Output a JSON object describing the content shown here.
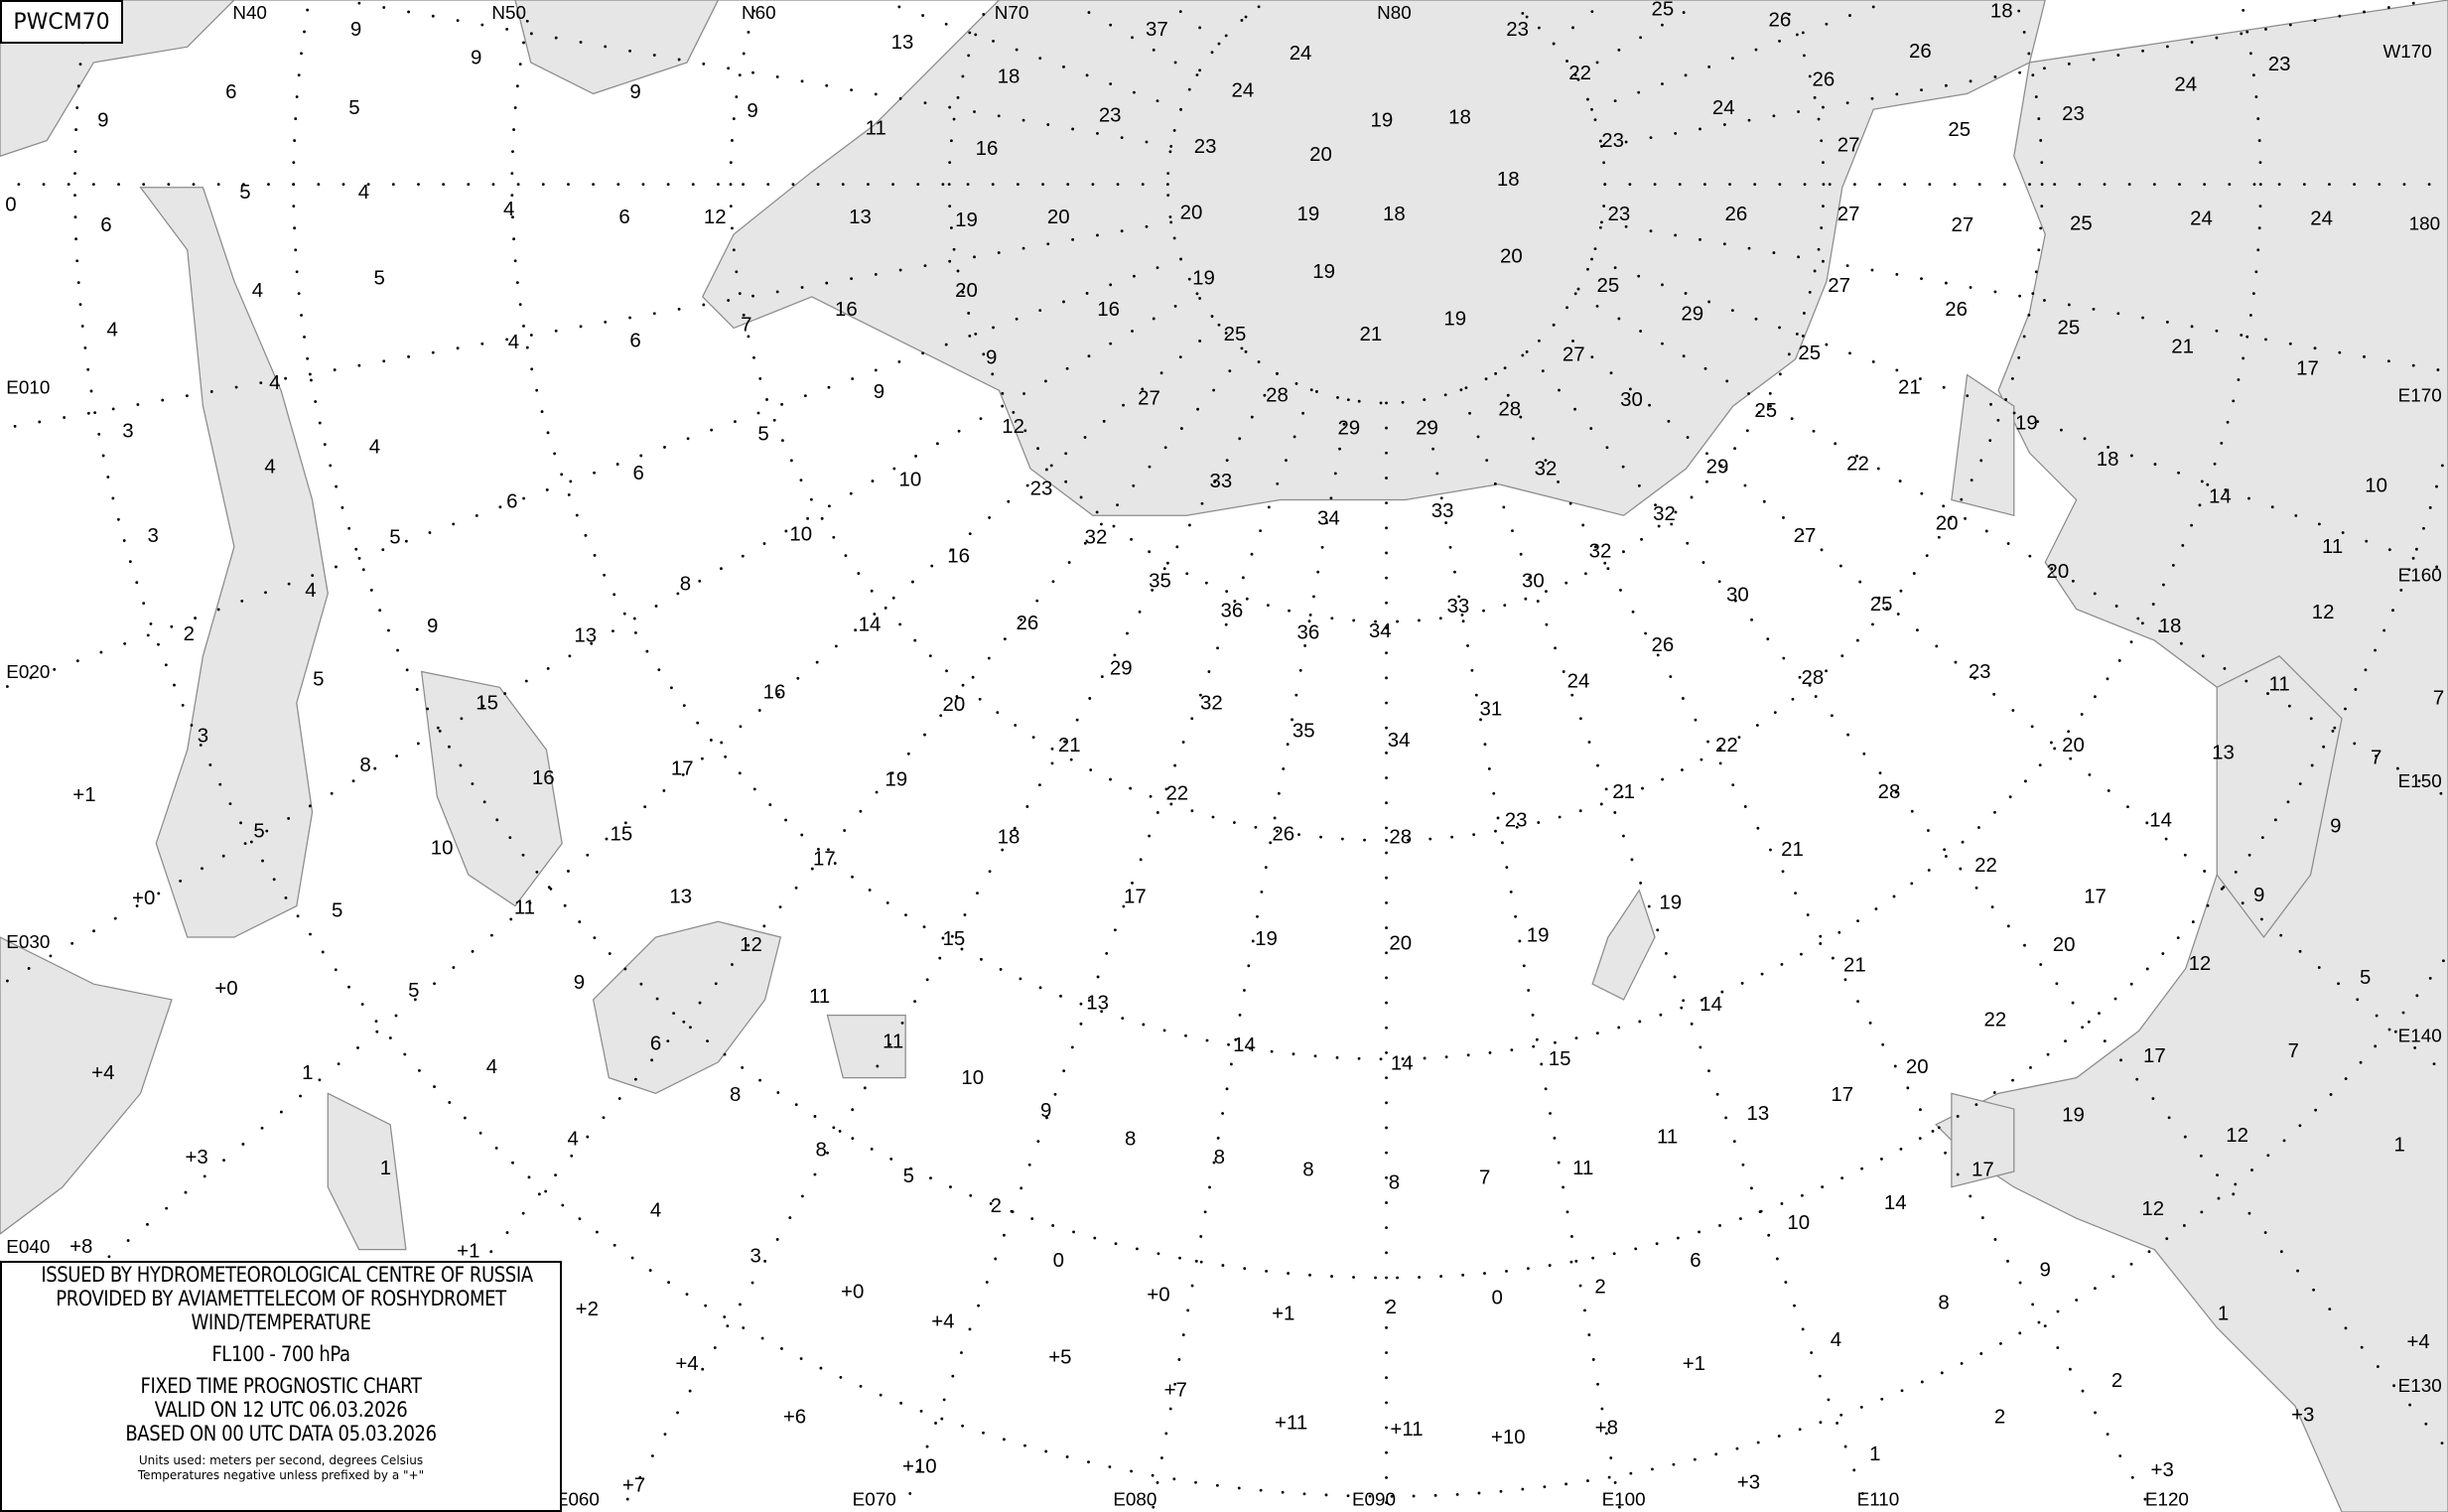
{
  "chart_id": "PWCM70",
  "legend": {
    "line1": "ISSUED BY HYDROMETEOROLOGICAL CENTRE OF RUSSIA",
    "line2": "PROVIDED BY AVIAMETTELECOM OF ROSHYDROMET",
    "line3": "WIND/TEMPERATURE",
    "level": "FL100 - 700 hPa",
    "type": "FIXED TIME PROGNOSTIC CHART",
    "valid": "VALID ON 12 UTC 06.03.2026",
    "based": "BASED ON 00 UTC DATA 05.03.2026",
    "units": "Units used: meters per second, degrees Celsius",
    "note": "Temperatures negative unless prefixed by a \"+\""
  },
  "grid_labels": [
    "N40",
    "N50",
    "N60",
    "N70",
    "N80",
    "W170",
    "180",
    "E170",
    "E160",
    "E150",
    "E140",
    "E130",
    "E120",
    "E110",
    "E100",
    "E090",
    "E080",
    "E070",
    "E060",
    "E040",
    "E030",
    "E020",
    "E010"
  ],
  "temperatures": [
    "9",
    "9",
    "9",
    "9",
    "13",
    "37",
    "23",
    "25",
    "26",
    "18",
    "23",
    "6",
    "5",
    "9",
    "11",
    "18",
    "23",
    "24",
    "24",
    "19",
    "18",
    "22",
    "24",
    "26",
    "26",
    "25",
    "23",
    "24",
    "5",
    "4",
    "16",
    "23",
    "20",
    "18",
    "23",
    "27",
    "0",
    "6",
    "4",
    "6",
    "12",
    "13",
    "19",
    "20",
    "20",
    "19",
    "18",
    "23",
    "26",
    "27",
    "27",
    "25",
    "24",
    "24",
    "4",
    "5",
    "20",
    "19",
    "19",
    "20",
    "25",
    "27",
    "26",
    "4",
    "4",
    "6",
    "7",
    "16",
    "16",
    "25",
    "21",
    "19",
    "27",
    "29",
    "25",
    "21",
    "17",
    "9",
    "9",
    "5",
    "4",
    "4",
    "3",
    "27",
    "28",
    "29",
    "29",
    "28",
    "30",
    "25",
    "25",
    "21",
    "19",
    "18",
    "10",
    "12",
    "4",
    "6",
    "10",
    "23",
    "33",
    "29",
    "22",
    "32",
    "3",
    "6",
    "10",
    "16",
    "32",
    "34",
    "33",
    "32",
    "20",
    "27",
    "14",
    "11",
    "5",
    "35",
    "36",
    "36",
    "34",
    "33",
    "30",
    "32",
    "30",
    "25",
    "20",
    "12",
    "4",
    "8",
    "2",
    "13",
    "14",
    "26",
    "29",
    "32",
    "26",
    "28",
    "18",
    "23",
    "9",
    "16",
    "24",
    "11",
    "5",
    "15",
    "20",
    "31",
    "35",
    "34",
    "7",
    "3",
    "8",
    "17",
    "21",
    "22",
    "26",
    "28",
    "23",
    "21",
    "22",
    "28",
    "20",
    "13",
    "7",
    "16",
    "19",
    "+1",
    "5",
    "15",
    "18",
    "17",
    "21",
    "22",
    "14",
    "9",
    "10",
    "13",
    "17",
    "19",
    "17",
    "9",
    "+0",
    "11",
    "15",
    "12",
    "19",
    "20",
    "19",
    "20",
    "5",
    "5",
    "12",
    "11",
    "13",
    "14",
    "21",
    "22",
    "6",
    "11",
    "14",
    "14",
    "15",
    "17",
    "7",
    "9",
    "5",
    "+0",
    "20",
    "17",
    "10",
    "9",
    "+4",
    "1",
    "4",
    "8",
    "13",
    "19",
    "12",
    "4",
    "8",
    "8",
    "8",
    "8",
    "8",
    "7",
    "11",
    "11",
    "17",
    "14",
    "12",
    "1",
    "1",
    "+3",
    "5",
    "2",
    "10",
    "4",
    "6",
    "0",
    "2",
    "8",
    "9",
    "1",
    "0",
    "2",
    "+1",
    "+0",
    "+0",
    "3",
    "+8",
    "+1",
    "+2",
    "+4",
    "4",
    "+4",
    "+4",
    "+5",
    "+7",
    "+1",
    "2",
    "+6",
    "+11",
    "+11",
    "+10",
    "+8",
    "2",
    "+3",
    "+10",
    "1",
    "+3",
    "+3",
    "+7"
  ],
  "colors": {
    "sea": "#e6e6e6",
    "land": "#ffffff",
    "coast": "#8c8c8c",
    "text": "#000000"
  }
}
